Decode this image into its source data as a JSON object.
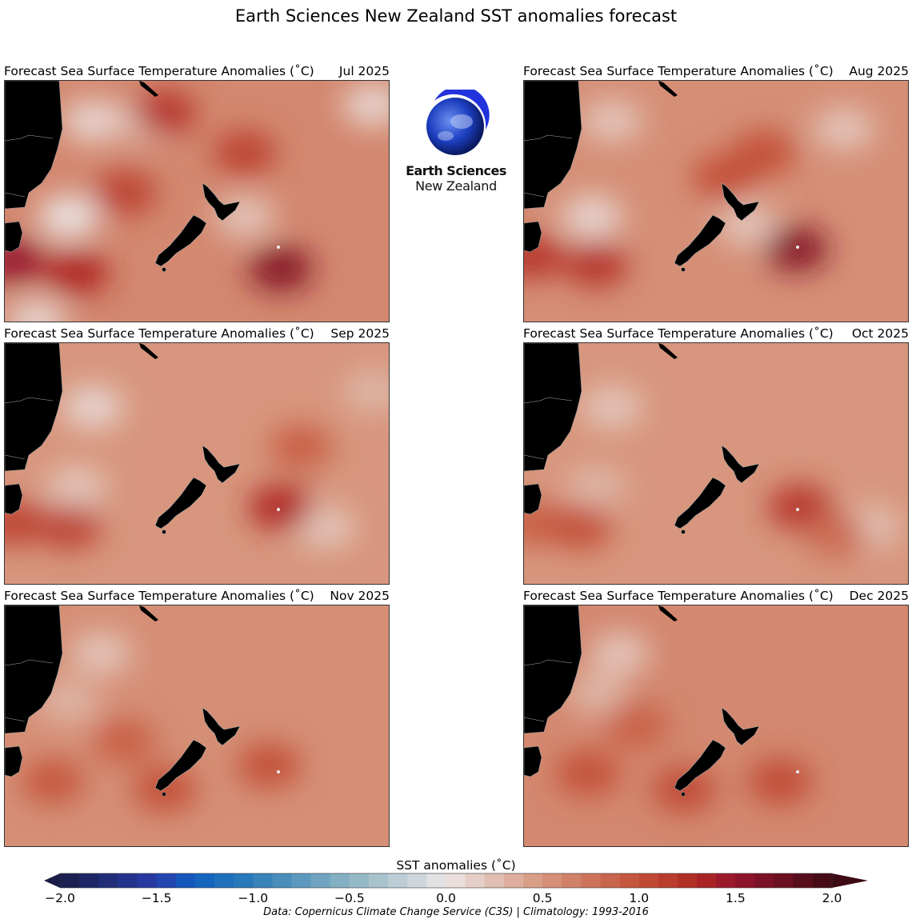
{
  "figure": {
    "title": "Earth Sciences New Zealand SST anomalies forecast"
  },
  "logo": {
    "line1": "Earth Sciences",
    "line2": "New Zealand"
  },
  "panels": [
    {
      "title": "Forecast Sea Surface Temperature Anomalies (˚C)",
      "date": "Jul 2025"
    },
    {
      "title": "Forecast Sea Surface Temperature Anomalies (˚C)",
      "date": "Aug 2025"
    },
    {
      "title": "Forecast Sea Surface Temperature Anomalies (˚C)",
      "date": "Sep 2025"
    },
    {
      "title": "Forecast Sea Surface Temperature Anomalies (˚C)",
      "date": "Oct 2025"
    },
    {
      "title": "Forecast Sea Surface Temperature Anomalies (˚C)",
      "date": "Nov 2025"
    },
    {
      "title": "Forecast Sea Surface Temperature Anomalies (˚C)",
      "date": "Dec 2025"
    }
  ],
  "colorbar": {
    "label": "SST anomalies (˚C)",
    "range": [
      -2.0,
      2.0
    ],
    "step": 0.1,
    "extend": "both",
    "ticks": [
      "−2.0",
      "−1.5",
      "−1.0",
      "−0.5",
      "0.0",
      "0.5",
      "1.0",
      "1.5",
      "2.0"
    ],
    "colors": {
      "min": "#1a1d47",
      "mid_neg": "#1060c0",
      "zero": "#ebe6e6",
      "mid_pos": "#c8553a",
      "max": "#3d0a14"
    }
  },
  "credit": "Data: Copernicus Climate Change Service (C3S) | Climatology: 1993-2016",
  "chart_data": {
    "type": "heatmap",
    "land_color": "#000000"
  }
}
